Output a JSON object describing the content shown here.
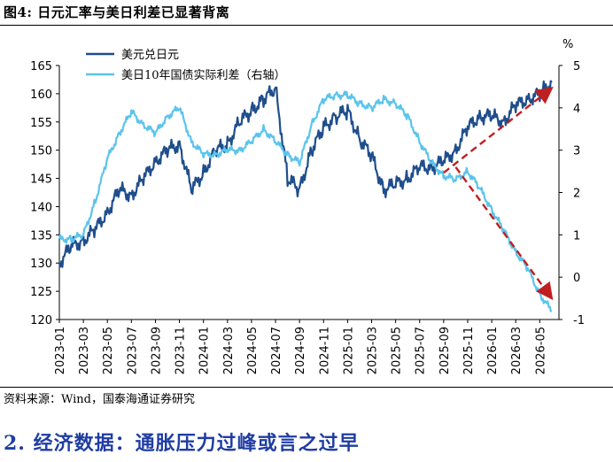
{
  "figure": {
    "title": "图4:  日元汇率与美日利差已显著背离",
    "source": "资料来源：Wind，国泰海通证券研究",
    "section_heading": "2.  经济数据：通胀压力过峰或言之过早"
  },
  "chart_data": {
    "type": "line",
    "title": "",
    "xlabel": "",
    "ylabel_left": "",
    "ylabel_right": "%",
    "ylim_left": [
      120,
      165
    ],
    "ylim_right": [
      -1,
      5
    ],
    "yticks_left": [
      120,
      125,
      130,
      135,
      140,
      145,
      150,
      155,
      160,
      165
    ],
    "yticks_right": [
      -1,
      0,
      1,
      2,
      3,
      4,
      5
    ],
    "x_tick_labels": [
      "2023-01",
      "2023-03",
      "2023-05",
      "2023-07",
      "2023-09",
      "2023-11",
      "2024-01",
      "2024-03",
      "2024-05",
      "2024-07",
      "2024-09",
      "2024-11",
      "2025-01",
      "2025-03",
      "2025-05",
      "2025-07",
      "2025-09",
      "2025-11",
      "2026-01",
      "2026-03",
      "2026-05"
    ],
    "legend_position": "top-left",
    "grid": false,
    "series": [
      {
        "name": "美元兑日元",
        "axis": "left",
        "color": "#1f4e8c",
        "x": [
          "2023-01",
          "2023-02",
          "2023-03",
          "2023-04",
          "2023-05",
          "2023-06",
          "2023-07",
          "2023-08",
          "2023-09",
          "2023-10",
          "2023-11",
          "2023-12",
          "2024-01",
          "2024-02",
          "2024-03",
          "2024-04",
          "2024-05",
          "2024-06",
          "2024-07",
          "2024-08",
          "2024-09",
          "2024-10",
          "2024-11",
          "2024-12",
          "2025-01",
          "2025-02",
          "2025-03",
          "2025-04",
          "2025-05",
          "2025-06",
          "2025-07",
          "2025-08",
          "2025-09",
          "2025-10",
          "2025-11",
          "2025-12",
          "2026-01",
          "2026-02",
          "2026-03",
          "2026-04",
          "2026-05",
          "2026-06"
        ],
        "values": [
          130,
          133,
          134,
          136,
          139,
          143,
          142,
          145,
          148,
          150,
          151,
          143,
          146,
          150,
          151,
          155,
          157,
          159,
          161,
          145,
          143,
          150,
          154,
          156,
          157,
          152,
          149,
          143,
          144,
          145,
          147,
          147,
          148,
          150,
          154,
          156,
          156,
          155,
          158,
          159,
          160,
          162
        ]
      },
      {
        "name": "美日10年国债实际利差（右轴）",
        "axis": "right",
        "color": "#5bc4ec",
        "x": [
          "2023-01",
          "2023-02",
          "2023-03",
          "2023-04",
          "2023-05",
          "2023-06",
          "2023-07",
          "2023-08",
          "2023-09",
          "2023-10",
          "2023-11",
          "2023-12",
          "2024-01",
          "2024-02",
          "2024-03",
          "2024-04",
          "2024-05",
          "2024-06",
          "2024-07",
          "2024-08",
          "2024-09",
          "2024-10",
          "2024-11",
          "2024-12",
          "2025-01",
          "2025-02",
          "2025-03",
          "2025-04",
          "2025-05",
          "2025-06",
          "2025-07",
          "2025-08",
          "2025-09",
          "2025-10",
          "2025-11",
          "2025-12",
          "2026-01",
          "2026-02",
          "2026-03",
          "2026-04",
          "2026-05",
          "2026-06"
        ],
        "values": [
          0.9,
          0.9,
          1.0,
          1.8,
          2.8,
          3.4,
          3.9,
          3.6,
          3.4,
          3.8,
          4.0,
          3.2,
          2.9,
          2.9,
          3.0,
          3.0,
          3.2,
          3.5,
          3.2,
          2.9,
          2.7,
          3.6,
          4.2,
          4.3,
          4.3,
          4.1,
          4.0,
          4.2,
          4.1,
          3.8,
          3.2,
          2.7,
          2.4,
          2.3,
          2.5,
          2.1,
          1.6,
          1.1,
          0.6,
          0.2,
          -0.4,
          -0.8
        ]
      }
    ],
    "annotations": [
      {
        "type": "arrow",
        "color": "#c01f1f",
        "style": "dashed",
        "from": [
          "2025-09",
          146
        ],
        "to": [
          "2026-06",
          161
        ],
        "axis": "left"
      },
      {
        "type": "arrow",
        "color": "#c01f1f",
        "style": "dashed",
        "from": [
          "2025-10",
          2.6
        ],
        "to": [
          "2026-06",
          -0.5
        ],
        "axis": "right"
      }
    ]
  }
}
